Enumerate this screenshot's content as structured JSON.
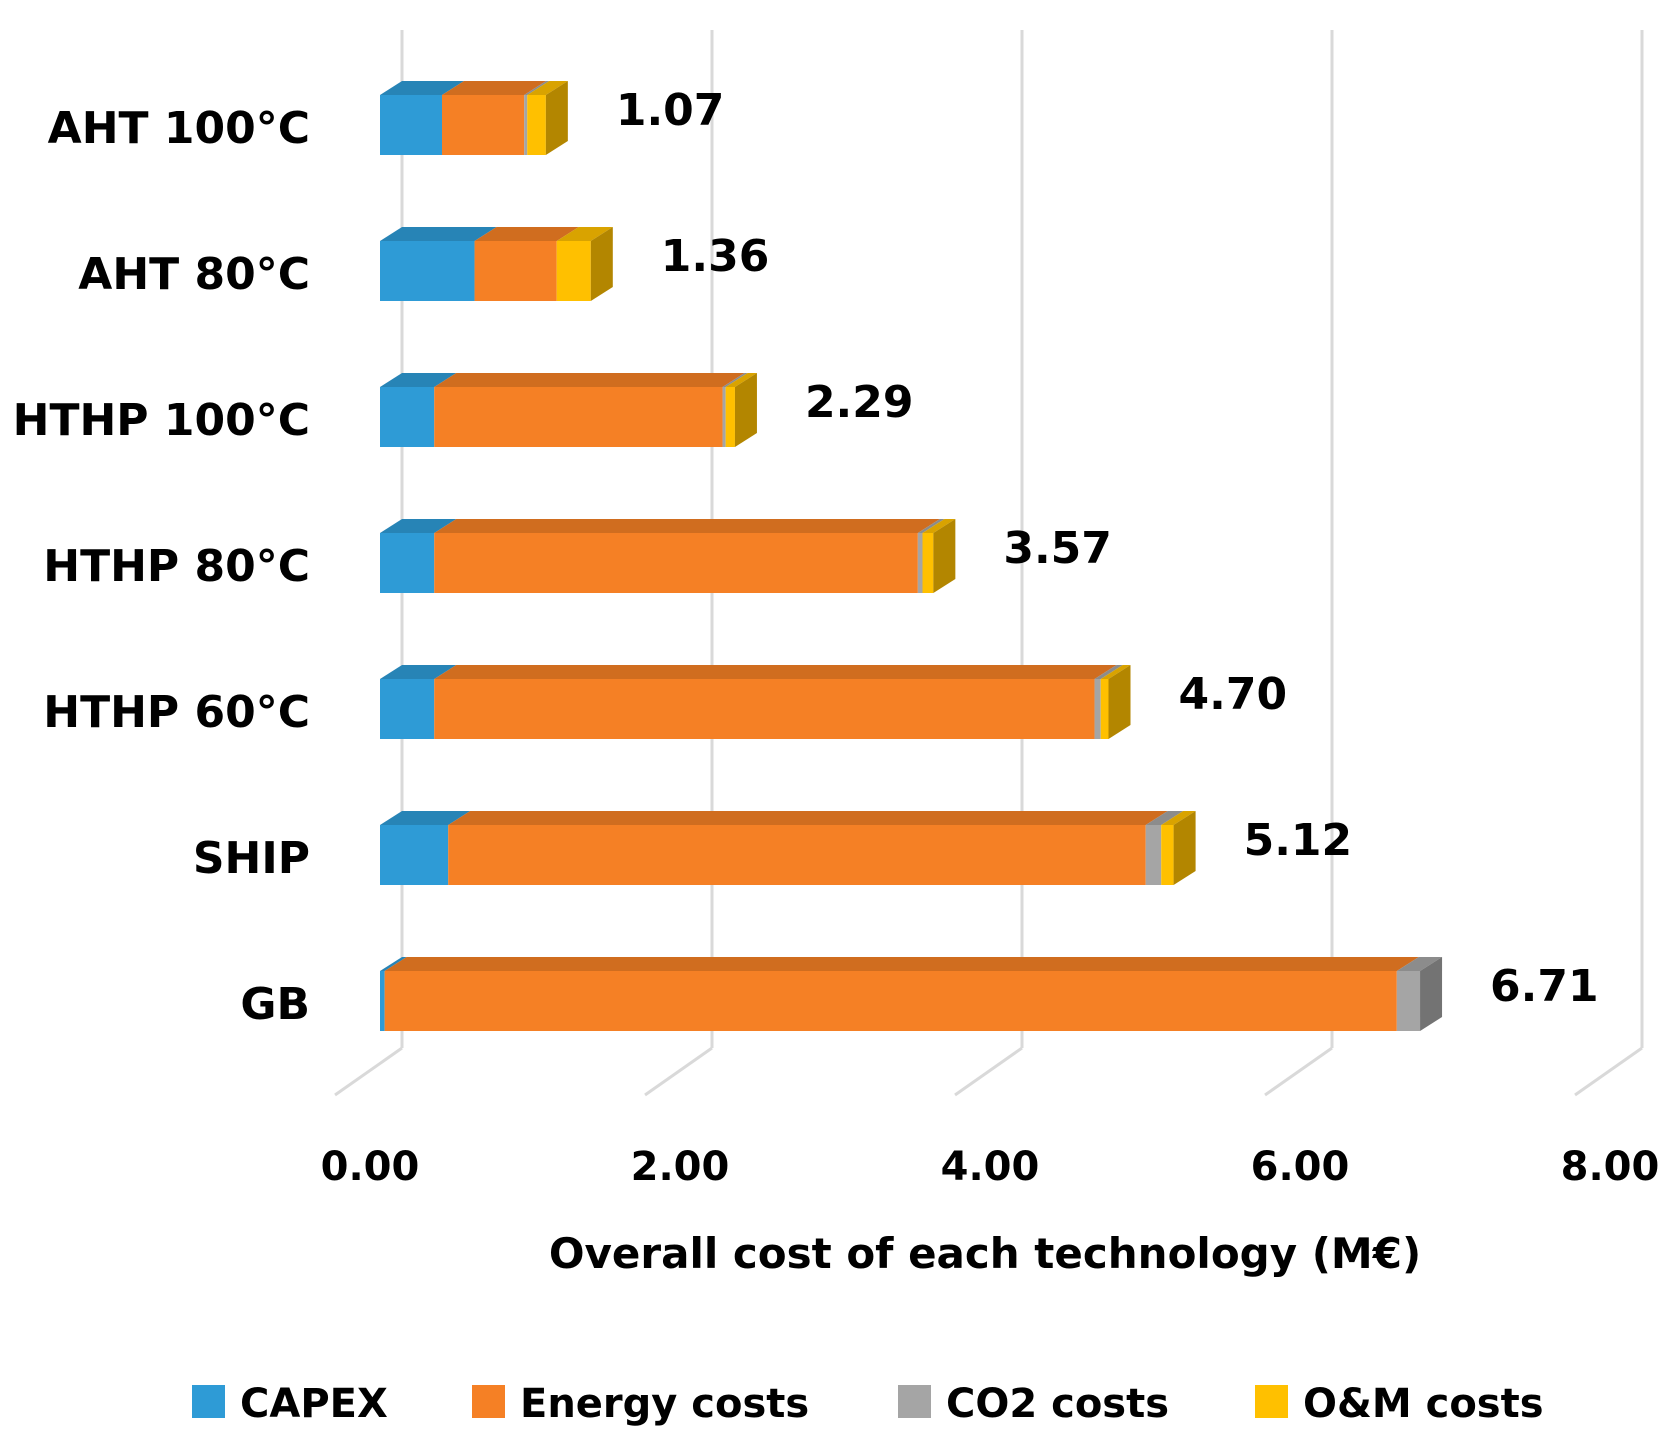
{
  "chart_data": {
    "type": "bar",
    "orientation": "horizontal",
    "stacked": true,
    "style": "3d",
    "categories": [
      "AHT 100°C",
      "AHT 80°C",
      "HTHP 100°C",
      "HTHP 80°C",
      "HTHP 60°C",
      "SHIP",
      "GB"
    ],
    "series": [
      {
        "name": "CAPEX",
        "color": "#2E9BD6",
        "values": [
          0.4,
          0.61,
          0.35,
          0.35,
          0.35,
          0.44,
          0.03
        ]
      },
      {
        "name": "Energy costs",
        "color": "#F58025",
        "values": [
          0.53,
          0.53,
          1.86,
          3.12,
          4.26,
          4.5,
          6.53
        ]
      },
      {
        "name": "CO2 costs",
        "color": "#A5A5A5",
        "values": [
          0.02,
          0.0,
          0.02,
          0.03,
          0.04,
          0.1,
          0.15
        ]
      },
      {
        "name": "O&M costs",
        "color": "#FFC000",
        "values": [
          0.12,
          0.22,
          0.06,
          0.07,
          0.05,
          0.08,
          0.0
        ]
      }
    ],
    "totals": [
      "1.07",
      "1.36",
      "2.29",
      "3.57",
      "4.70",
      "5.12",
      "6.71"
    ],
    "xlabel": "Overall cost of each technology (M€)",
    "ylabel": "",
    "xlim": [
      0,
      8
    ],
    "xticks": [
      "0.00",
      "2.00",
      "4.00",
      "6.00",
      "8.00"
    ],
    "grid": true,
    "legend": "bottom"
  }
}
